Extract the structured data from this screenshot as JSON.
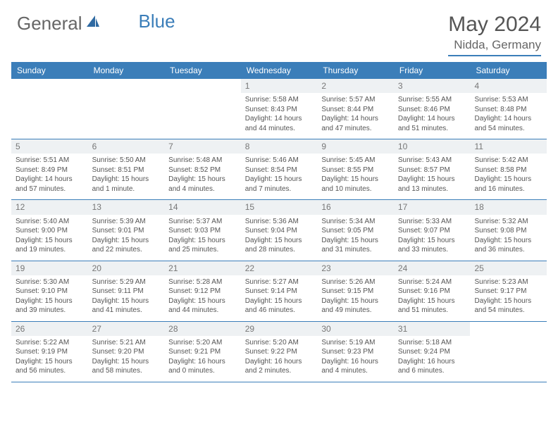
{
  "brand": {
    "part1": "General",
    "part2": "Blue"
  },
  "title": "May 2024",
  "location": "Nidda, Germany",
  "header_bg": "#3b7eb9",
  "day_bg": "#eef1f3",
  "dayNames": [
    "Sunday",
    "Monday",
    "Tuesday",
    "Wednesday",
    "Thursday",
    "Friday",
    "Saturday"
  ],
  "weeks": [
    [
      null,
      null,
      null,
      {
        "d": "1",
        "sr": "5:58 AM",
        "ss": "8:43 PM",
        "dl": "14 hours and 44 minutes."
      },
      {
        "d": "2",
        "sr": "5:57 AM",
        "ss": "8:44 PM",
        "dl": "14 hours and 47 minutes."
      },
      {
        "d": "3",
        "sr": "5:55 AM",
        "ss": "8:46 PM",
        "dl": "14 hours and 51 minutes."
      },
      {
        "d": "4",
        "sr": "5:53 AM",
        "ss": "8:48 PM",
        "dl": "14 hours and 54 minutes."
      }
    ],
    [
      {
        "d": "5",
        "sr": "5:51 AM",
        "ss": "8:49 PM",
        "dl": "14 hours and 57 minutes."
      },
      {
        "d": "6",
        "sr": "5:50 AM",
        "ss": "8:51 PM",
        "dl": "15 hours and 1 minute."
      },
      {
        "d": "7",
        "sr": "5:48 AM",
        "ss": "8:52 PM",
        "dl": "15 hours and 4 minutes."
      },
      {
        "d": "8",
        "sr": "5:46 AM",
        "ss": "8:54 PM",
        "dl": "15 hours and 7 minutes."
      },
      {
        "d": "9",
        "sr": "5:45 AM",
        "ss": "8:55 PM",
        "dl": "15 hours and 10 minutes."
      },
      {
        "d": "10",
        "sr": "5:43 AM",
        "ss": "8:57 PM",
        "dl": "15 hours and 13 minutes."
      },
      {
        "d": "11",
        "sr": "5:42 AM",
        "ss": "8:58 PM",
        "dl": "15 hours and 16 minutes."
      }
    ],
    [
      {
        "d": "12",
        "sr": "5:40 AM",
        "ss": "9:00 PM",
        "dl": "15 hours and 19 minutes."
      },
      {
        "d": "13",
        "sr": "5:39 AM",
        "ss": "9:01 PM",
        "dl": "15 hours and 22 minutes."
      },
      {
        "d": "14",
        "sr": "5:37 AM",
        "ss": "9:03 PM",
        "dl": "15 hours and 25 minutes."
      },
      {
        "d": "15",
        "sr": "5:36 AM",
        "ss": "9:04 PM",
        "dl": "15 hours and 28 minutes."
      },
      {
        "d": "16",
        "sr": "5:34 AM",
        "ss": "9:05 PM",
        "dl": "15 hours and 31 minutes."
      },
      {
        "d": "17",
        "sr": "5:33 AM",
        "ss": "9:07 PM",
        "dl": "15 hours and 33 minutes."
      },
      {
        "d": "18",
        "sr": "5:32 AM",
        "ss": "9:08 PM",
        "dl": "15 hours and 36 minutes."
      }
    ],
    [
      {
        "d": "19",
        "sr": "5:30 AM",
        "ss": "9:10 PM",
        "dl": "15 hours and 39 minutes."
      },
      {
        "d": "20",
        "sr": "5:29 AM",
        "ss": "9:11 PM",
        "dl": "15 hours and 41 minutes."
      },
      {
        "d": "21",
        "sr": "5:28 AM",
        "ss": "9:12 PM",
        "dl": "15 hours and 44 minutes."
      },
      {
        "d": "22",
        "sr": "5:27 AM",
        "ss": "9:14 PM",
        "dl": "15 hours and 46 minutes."
      },
      {
        "d": "23",
        "sr": "5:26 AM",
        "ss": "9:15 PM",
        "dl": "15 hours and 49 minutes."
      },
      {
        "d": "24",
        "sr": "5:24 AM",
        "ss": "9:16 PM",
        "dl": "15 hours and 51 minutes."
      },
      {
        "d": "25",
        "sr": "5:23 AM",
        "ss": "9:17 PM",
        "dl": "15 hours and 54 minutes."
      }
    ],
    [
      {
        "d": "26",
        "sr": "5:22 AM",
        "ss": "9:19 PM",
        "dl": "15 hours and 56 minutes."
      },
      {
        "d": "27",
        "sr": "5:21 AM",
        "ss": "9:20 PM",
        "dl": "15 hours and 58 minutes."
      },
      {
        "d": "28",
        "sr": "5:20 AM",
        "ss": "9:21 PM",
        "dl": "16 hours and 0 minutes."
      },
      {
        "d": "29",
        "sr": "5:20 AM",
        "ss": "9:22 PM",
        "dl": "16 hours and 2 minutes."
      },
      {
        "d": "30",
        "sr": "5:19 AM",
        "ss": "9:23 PM",
        "dl": "16 hours and 4 minutes."
      },
      {
        "d": "31",
        "sr": "5:18 AM",
        "ss": "9:24 PM",
        "dl": "16 hours and 6 minutes."
      },
      null
    ]
  ],
  "labels": {
    "sunrise": "Sunrise:",
    "sunset": "Sunset:",
    "daylight": "Daylight:"
  }
}
